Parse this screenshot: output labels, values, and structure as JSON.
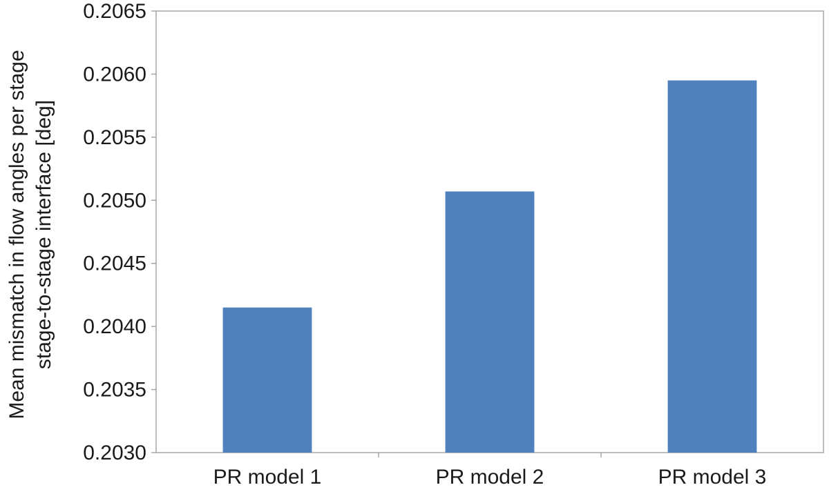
{
  "chart_data": {
    "type": "bar",
    "title": "",
    "xlabel": "",
    "ylabel_lines": [
      "Mean mismatch in flow angles per stage",
      "stage-to-stage  interface [deg]"
    ],
    "categories": [
      "PR model 1",
      "PR model 2",
      "PR model 3"
    ],
    "values": [
      0.20415,
      0.20507,
      0.20595
    ],
    "ylim": [
      0.203,
      0.2065
    ],
    "y_ticks": [
      "0.2030",
      "0.2035",
      "0.2040",
      "0.2045",
      "0.2050",
      "0.2055",
      "0.2060",
      "0.2065"
    ],
    "grid": false,
    "legend": "none",
    "bar_color": "#4f81bd",
    "axis_color": "#a6a6a6"
  }
}
